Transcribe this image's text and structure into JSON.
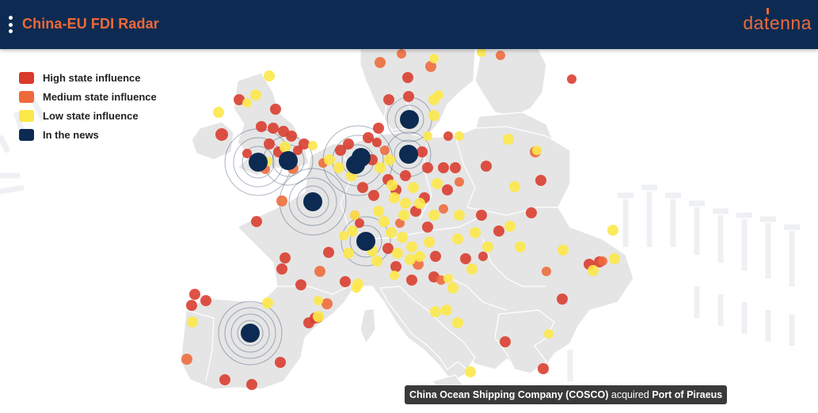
{
  "header": {
    "title": "China-EU FDI Radar",
    "brand": "datenna",
    "colors": {
      "background": "#0d2b52",
      "accent": "#ee6a3a"
    }
  },
  "legend": {
    "items": [
      {
        "label": "High state influence",
        "color": "#d93a2b"
      },
      {
        "label": "Medium state influence",
        "color": "#ee6a3a"
      },
      {
        "label": "Low state influence",
        "color": "#fce84a"
      },
      {
        "label": "In the news",
        "color": "#0d2b52"
      }
    ]
  },
  "tooltip": {
    "company": "China Ocean Shipping Company (COSCO)",
    "verb": "acquired",
    "target": "Port of Piraeus"
  },
  "map": {
    "land_color": "#e5e5e5",
    "border_color": "#ffffff",
    "icons": [
      "menu-icon",
      "brand-logo"
    ]
  }
}
